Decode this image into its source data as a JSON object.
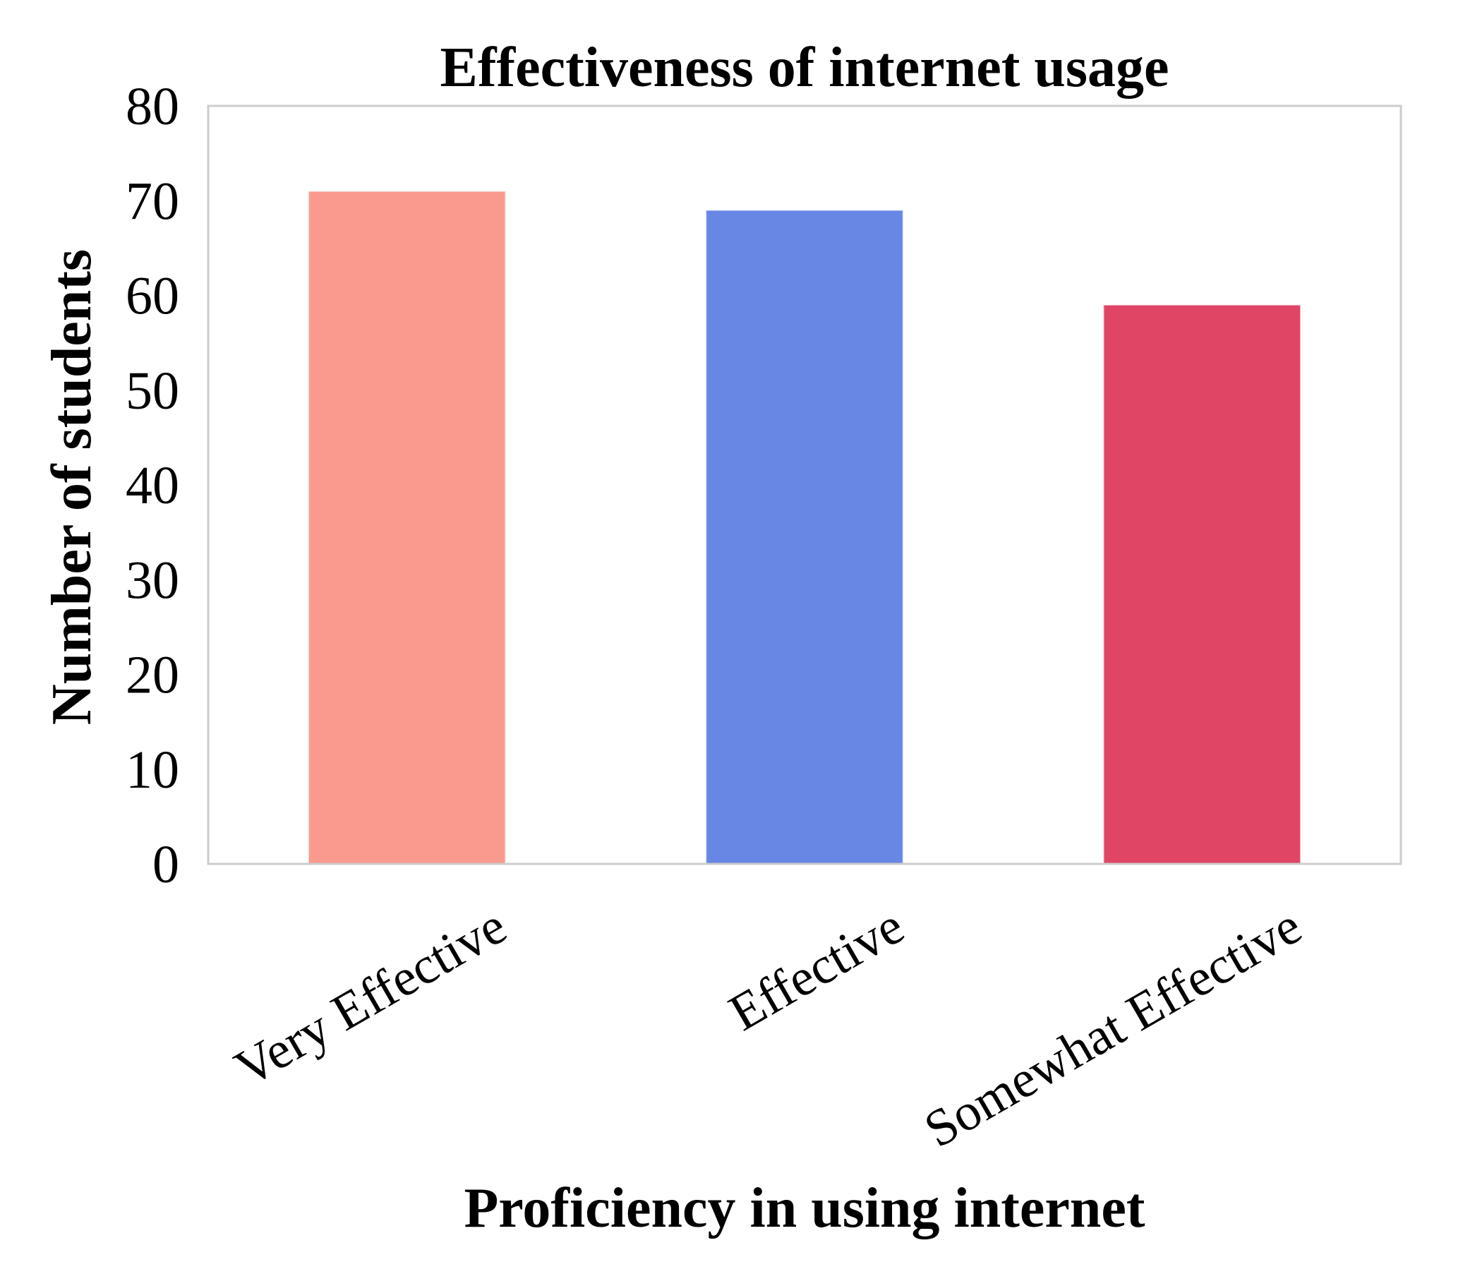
{
  "chart_data": {
    "type": "bar",
    "title": "Effectiveness of internet usage",
    "xlabel": "Proficiency in using internet",
    "ylabel": "Number of students",
    "categories": [
      "Very Effective",
      "Effective",
      "Somewhat Effective"
    ],
    "values": [
      71,
      69,
      59
    ],
    "colors": [
      "#fa9a8f",
      "#6886e4",
      "#e04565"
    ],
    "ylim": [
      0,
      80
    ],
    "yticks": [
      "0",
      "10",
      "20",
      "30",
      "40",
      "50",
      "60",
      "70",
      "80"
    ],
    "grid": false,
    "legend": "none",
    "frame_color": "#cccccc"
  }
}
